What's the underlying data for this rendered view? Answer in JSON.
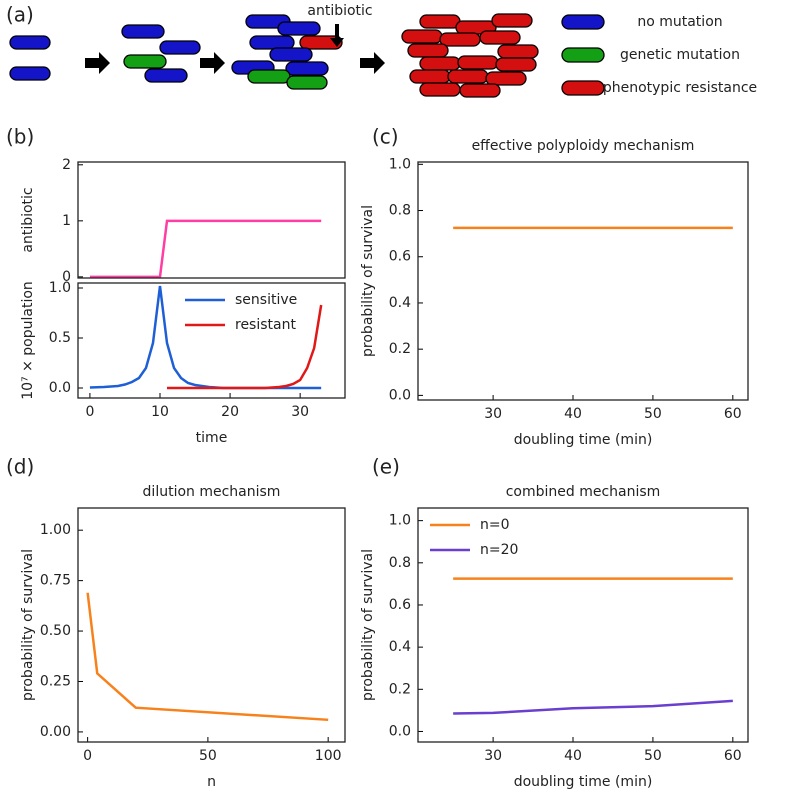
{
  "diagram": {
    "label": "(a)",
    "arrow_label": "antibiotic",
    "legend": [
      {
        "name": "no mutation",
        "color": "#1414c8"
      },
      {
        "name": "genetic mutation",
        "color": "#14a014"
      },
      {
        "name": "phenotypic resistance",
        "color": "#d40f0f"
      }
    ]
  },
  "chart_data": [
    {
      "type": "line",
      "label": "(b)",
      "ylabel": "antibiotic",
      "x": [
        0,
        10,
        11,
        33
      ],
      "xlim": [
        -1.7,
        36.4
      ],
      "series": [
        {
          "color": "#ff3da2",
          "values": [
            0,
            0,
            1,
            1
          ]
        }
      ],
      "ylim": [
        -0.02,
        2.05
      ],
      "yticks": [
        0,
        1,
        2
      ]
    },
    {
      "type": "line",
      "xlabel": "time",
      "ylabel": "10⁷ × population",
      "x": [
        0,
        1,
        2,
        3,
        4,
        5,
        6,
        7,
        8,
        9,
        10,
        11,
        12,
        13,
        14,
        15,
        16,
        17,
        18,
        19,
        20,
        21,
        22,
        23,
        24,
        25,
        26,
        27,
        28,
        29,
        30,
        31,
        32,
        33
      ],
      "xlim": [
        -1.7,
        36.4
      ],
      "xticks": [
        0,
        10,
        20,
        30
      ],
      "ylim": [
        -0.1,
        1.05
      ],
      "yticks": [
        {
          "value": 0,
          "label": "0.0"
        },
        0.5,
        {
          "value": 1,
          "label": "1.0"
        }
      ],
      "legend": "upper right",
      "series": [
        {
          "name": "sensitive",
          "color": "#1f5fd6",
          "values": [
            0.005,
            0.007,
            0.01,
            0.015,
            0.02,
            0.035,
            0.06,
            0.1,
            0.2,
            0.45,
            1.02,
            0.45,
            0.2,
            0.1,
            0.05,
            0.03,
            0.02,
            0.01,
            0.005,
            0,
            0,
            0,
            0,
            0,
            0,
            0,
            0,
            0,
            0,
            0,
            0,
            0,
            0,
            0
          ]
        },
        {
          "name": "resistant",
          "color": "#e01818",
          "values": [
            null,
            null,
            null,
            null,
            null,
            null,
            null,
            null,
            null,
            null,
            null,
            0,
            0,
            0,
            0,
            0,
            0,
            0,
            0,
            0,
            0,
            0,
            0,
            0,
            0,
            0,
            0.005,
            0.01,
            0.02,
            0.04,
            0.08,
            0.2,
            0.4,
            0.83
          ]
        }
      ]
    },
    {
      "type": "line",
      "label": "(c)",
      "title": "effective polyploidy mechanism",
      "xlabel": "doubling time (min)",
      "ylabel": "probability of survival",
      "x": [
        25,
        60
      ],
      "xlim": [
        20.6,
        61.9
      ],
      "xticks": [
        30,
        40,
        50,
        60
      ],
      "ylim": [
        -0.02,
        1.01
      ],
      "yticks": [
        {
          "value": 0,
          "label": "0.0"
        },
        0.2,
        0.4,
        0.6,
        0.8,
        {
          "value": 1,
          "label": "1.0"
        }
      ],
      "series": [
        {
          "color": "#f7821c",
          "values": [
            0.725,
            0.725
          ]
        }
      ]
    },
    {
      "type": "line",
      "label": "(d)",
      "title": "dilution mechanism",
      "xlabel": "n",
      "ylabel": "probability of survival",
      "x": [
        0,
        4,
        20,
        100
      ],
      "xlim": [
        -4,
        107
      ],
      "xticks": [
        0,
        50,
        100
      ],
      "ylim": [
        -0.05,
        1.11
      ],
      "yticks": [
        {
          "value": 0,
          "label": "0.00"
        },
        0.25,
        {
          "value": 0.5,
          "label": "0.50"
        },
        0.75,
        {
          "value": 1,
          "label": "1.00"
        }
      ],
      "series": [
        {
          "color": "#f7821c",
          "values": [
            0.69,
            0.29,
            0.12,
            0.06
          ]
        }
      ]
    },
    {
      "type": "line",
      "label": "(e)",
      "title": "combined mechanism",
      "xlabel": "doubling time (min)",
      "ylabel": "probability of survival",
      "x": [
        25,
        30,
        40,
        50,
        60
      ],
      "xlim": [
        20.6,
        61.9
      ],
      "xticks": [
        30,
        40,
        50,
        60
      ],
      "ylim": [
        -0.05,
        1.06
      ],
      "yticks": [
        {
          "value": 0,
          "label": "0.0"
        },
        0.2,
        0.4,
        0.6,
        0.8,
        {
          "value": 1,
          "label": "1.0"
        }
      ],
      "legend": "upper left",
      "series": [
        {
          "name": "n=0",
          "color": "#f7821c",
          "values": [
            0.725,
            0.725,
            0.725,
            0.725,
            0.725
          ]
        },
        {
          "name": "n=20",
          "color": "#6a3fd0",
          "values": [
            0.085,
            0.088,
            0.11,
            0.12,
            0.145
          ]
        }
      ]
    }
  ]
}
